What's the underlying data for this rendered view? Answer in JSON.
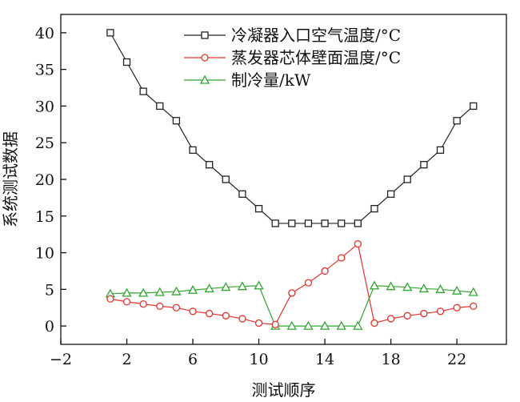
{
  "chart_data": {
    "type": "line",
    "xlabel": "测试顺序",
    "ylabel": "系统测试数据",
    "xlim": [
      -2,
      25
    ],
    "ylim": [
      -2.5,
      42.5
    ],
    "xticks": [
      -2,
      2,
      6,
      10,
      14,
      18,
      22
    ],
    "yticks": [
      0,
      5,
      10,
      15,
      20,
      25,
      30,
      35,
      40
    ],
    "x": [
      1,
      2,
      3,
      4,
      5,
      6,
      7,
      8,
      9,
      10,
      11,
      12,
      13,
      14,
      15,
      16,
      17,
      18,
      19,
      20,
      21,
      22,
      23
    ],
    "legend_position": "top-right",
    "grid": false,
    "series": [
      {
        "name": "冷凝器入口空气温度/°C",
        "marker": "square",
        "color": "#222222",
        "values": [
          40,
          36,
          32,
          30,
          28,
          24,
          22,
          20,
          18,
          16,
          14,
          14,
          14,
          14,
          14,
          14,
          16,
          18,
          20,
          22,
          24,
          28,
          30
        ]
      },
      {
        "name": "蒸发器芯体壁面温度/°C",
        "marker": "circle",
        "color": "#e8322c",
        "values": [
          3.7,
          3.3,
          3.0,
          2.7,
          2.5,
          2.0,
          1.7,
          1.4,
          1.0,
          0.4,
          0.2,
          4.5,
          5.9,
          7.5,
          9.3,
          11.2,
          0.4,
          1.0,
          1.4,
          1.7,
          2.0,
          2.5,
          2.7
        ]
      },
      {
        "name": "制冷量/kW",
        "marker": "triangle",
        "color": "#2fa82f",
        "values": [
          4.4,
          4.5,
          4.5,
          4.6,
          4.7,
          4.9,
          5.1,
          5.3,
          5.4,
          5.5,
          0.0,
          0.0,
          0.0,
          0.0,
          0.0,
          0.0,
          5.5,
          5.4,
          5.3,
          5.1,
          5.0,
          4.8,
          4.6
        ]
      }
    ]
  }
}
